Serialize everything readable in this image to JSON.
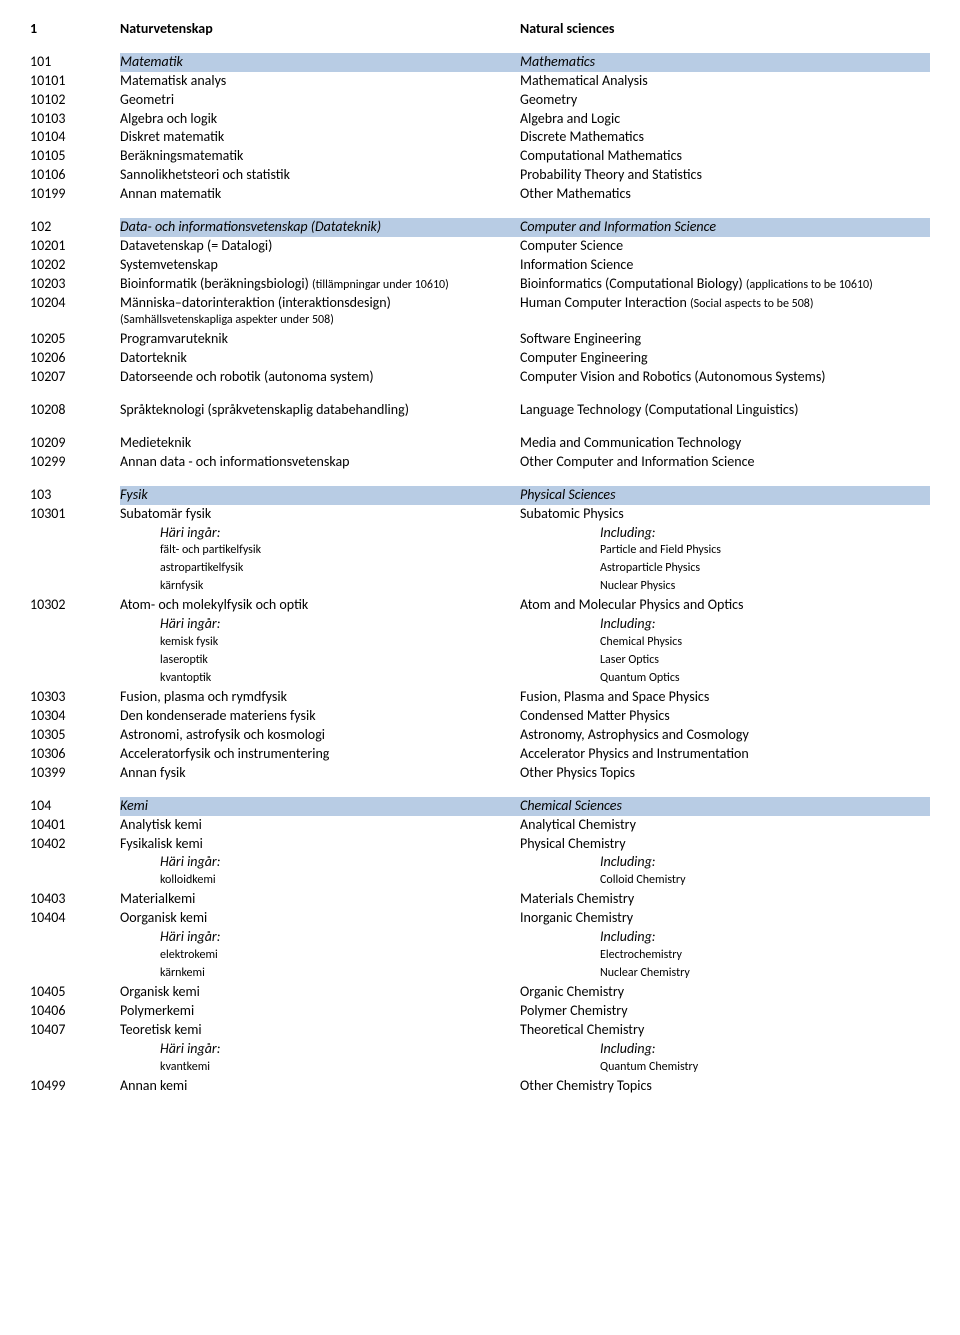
{
  "h1": {
    "code": "1",
    "sv": "Naturvetenskap",
    "en": "Natural sciences"
  },
  "s101": {
    "code": "101",
    "sv": "Matematik",
    "en": "Mathematics"
  },
  "r10101": {
    "code": "10101",
    "sv": "Matematisk analys",
    "en": "Mathematical Analysis"
  },
  "r10102": {
    "code": "10102",
    "sv": "Geometri",
    "en": "Geometry"
  },
  "r10103": {
    "code": "10103",
    "sv": "Algebra och logik",
    "en": "Algebra and Logic"
  },
  "r10104": {
    "code": "10104",
    "sv": "Diskret matematik",
    "en": "Discrete Mathematics"
  },
  "r10105": {
    "code": "10105",
    "sv": "Beräkningsmatematik",
    "en": "Computational Mathematics"
  },
  "r10106": {
    "code": "10106",
    "sv": "Sannolikhetsteori och statistik",
    "en": "Probability Theory and Statistics"
  },
  "r10199": {
    "code": "10199",
    "sv": "Annan matematik",
    "en": "Other Mathematics"
  },
  "s102": {
    "code": "102",
    "sv": "Data- och informationsvetenskap (Datateknik)",
    "en": "Computer and Information Science"
  },
  "r10201": {
    "code": "10201",
    "sv": "Datavetenskap (= Datalogi)",
    "en": "Computer Science"
  },
  "r10202": {
    "code": "10202",
    "sv": "Systemvetenskap",
    "en": "Information Science"
  },
  "r10203": {
    "code": "10203",
    "sv": "Bioinformatik (beräkningsbiologi) ",
    "sv_small": "(tillämpningar under 10610)",
    "en": "Bioinformatics (Computational Biology) ",
    "en_small": "(applications to be 10610)"
  },
  "r10204": {
    "code": "10204",
    "sv": "Människa–datorinteraktion (interaktionsdesign)",
    "sv_sub": "(Samhällsvetenskapliga aspekter under 508)",
    "en": "Human Computer Interaction ",
    "en_small": "(Social aspects to be 508)"
  },
  "r10205": {
    "code": "10205",
    "sv": "Programvaruteknik",
    "en": "Software Engineering"
  },
  "r10206": {
    "code": "10206",
    "sv": "Datorteknik",
    "en": "Computer Engineering"
  },
  "r10207": {
    "code": "10207",
    "sv": "Datorseende och robotik (autonoma system)",
    "en": "Computer Vision and Robotics (Autonomous Systems)"
  },
  "r10208": {
    "code": "10208",
    "sv": "Språkteknologi (språkvetenskaplig databehandling)",
    "en": "Language Technology (Computational Linguistics)"
  },
  "r10209": {
    "code": "10209",
    "sv": "Medieteknik",
    "en": "Media and Communication Technology"
  },
  "r10299": {
    "code": "10299",
    "sv": "Annan data - och informationsvetenskap",
    "en": "Other Computer and Information Science"
  },
  "s103": {
    "code": "103",
    "sv": "Fysik",
    "en": "Physical Sciences"
  },
  "r10301": {
    "code": "10301",
    "sv": "Subatomär fysik",
    "en": "Subatomic Physics"
  },
  "r10301i": {
    "sv": "Häri ingår:",
    "en": "Including:"
  },
  "r10301a": {
    "sv": "fält- och partikelfysik",
    "en": "Particle and Field Physics"
  },
  "r10301b": {
    "sv": "astropartikelfysik",
    "en": "Astroparticle Physics"
  },
  "r10301c": {
    "sv": "kärnfysik",
    "en": "Nuclear Physics"
  },
  "r10302": {
    "code": "10302",
    "sv": "Atom- och molekylfysik och optik",
    "en": "Atom and Molecular Physics and Optics"
  },
  "r10302i": {
    "sv": "Häri ingår:",
    "en": "Including:"
  },
  "r10302a": {
    "sv": "kemisk fysik",
    "en": "Chemical Physics"
  },
  "r10302b": {
    "sv": "laseroptik",
    "en": "Laser Optics"
  },
  "r10302c": {
    "sv": "kvantoptik",
    "en": "Quantum Optics"
  },
  "r10303": {
    "code": "10303",
    "sv": "Fusion, plasma och rymdfysik",
    "en": "Fusion, Plasma and Space Physics"
  },
  "r10304": {
    "code": "10304",
    "sv": "Den kondenserade materiens fysik",
    "en": "Condensed Matter Physics"
  },
  "r10305": {
    "code": "10305",
    "sv": "Astronomi, astrofysik och kosmologi",
    "en": "Astronomy, Astrophysics and Cosmology"
  },
  "r10306": {
    "code": "10306",
    "sv": "Acceleratorfysik och instrumentering",
    "en": "Accelerator Physics and Instrumentation"
  },
  "r10399": {
    "code": "10399",
    "sv": "Annan fysik",
    "en": "Other Physics Topics"
  },
  "s104": {
    "code": "104",
    "sv": "Kemi",
    "en": "Chemical Sciences"
  },
  "r10401": {
    "code": "10401",
    "sv": "Analytisk kemi",
    "en": "Analytical Chemistry"
  },
  "r10402": {
    "code": "10402",
    "sv": "Fysikalisk kemi",
    "en": "Physical Chemistry"
  },
  "r10402i": {
    "sv": "Häri ingår:",
    "en": "Including:"
  },
  "r10402a": {
    "sv": "kolloidkemi",
    "en": "Colloid Chemistry"
  },
  "r10403": {
    "code": "10403",
    "sv": "Materialkemi",
    "en": "Materials Chemistry"
  },
  "r10404": {
    "code": "10404",
    "sv": "Oorganisk kemi",
    "en": "Inorganic Chemistry"
  },
  "r10404i": {
    "sv": "Häri ingår:",
    "en": "Including:"
  },
  "r10404a": {
    "sv": "elektrokemi",
    "en": "Electrochemistry"
  },
  "r10404b": {
    "sv": "kärnkemi",
    "en": "Nuclear Chemistry"
  },
  "r10405": {
    "code": "10405",
    "sv": "Organisk kemi",
    "en": "Organic Chemistry"
  },
  "r10406": {
    "code": "10406",
    "sv": "Polymerkemi",
    "en": "Polymer Chemistry"
  },
  "r10407": {
    "code": "10407",
    "sv": "Teoretisk kemi",
    "en": "Theoretical Chemistry"
  },
  "r10407i": {
    "sv": "Häri ingår:",
    "en": "Including:"
  },
  "r10407a": {
    "sv": "kvantkemi",
    "en": "Quantum Chemistry"
  },
  "r10499": {
    "code": "10499",
    "sv": "Annan kemi",
    "en": "Other Chemistry Topics"
  },
  "colors": {
    "banner_bg": "#b8cce4",
    "text": "#000000",
    "page_bg": "#ffffff"
  }
}
